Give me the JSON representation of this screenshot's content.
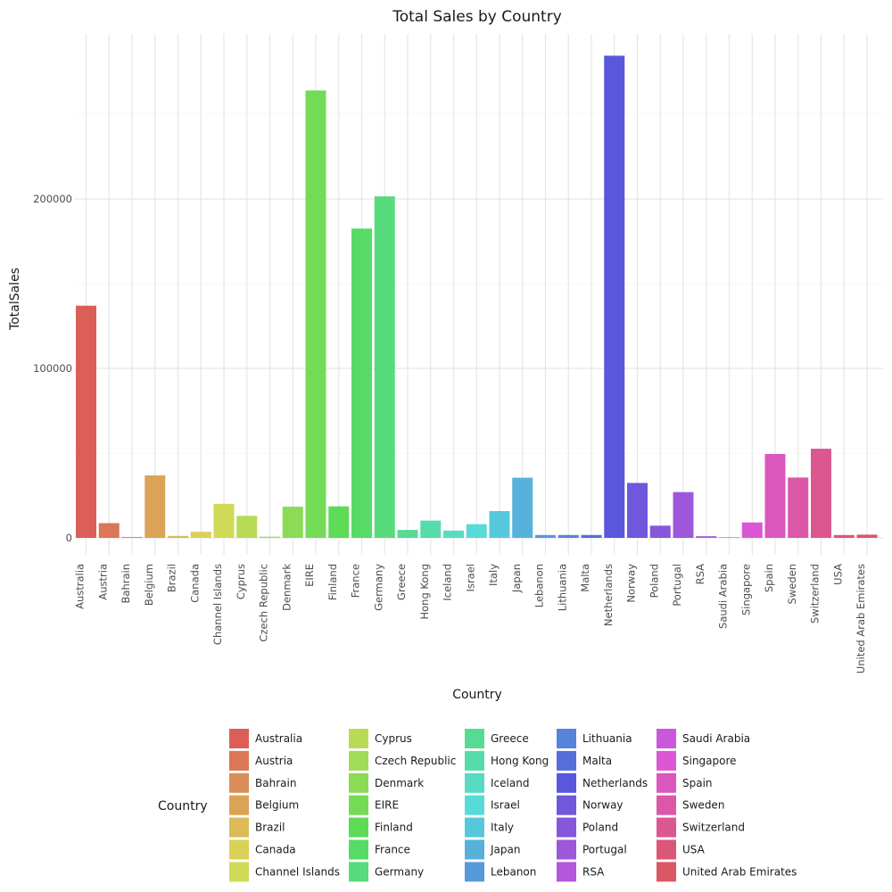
{
  "chart_data": {
    "type": "bar",
    "title": "Total Sales by Country",
    "xlabel": "Country",
    "ylabel": "TotalSales",
    "ylim": [
      0,
      300000
    ],
    "yticks": [
      0,
      100000,
      200000
    ],
    "ytick_labels": [
      "0",
      "100000",
      "200000"
    ],
    "grid": true,
    "legend_title": "Country",
    "legend_position": "bottom",
    "categories": [
      "Australia",
      "Austria",
      "Bahrain",
      "Belgium",
      "Brazil",
      "Canada",
      "Channel Islands",
      "Cyprus",
      "Czech Republic",
      "Denmark",
      "EIRE",
      "Finland",
      "France",
      "Germany",
      "Greece",
      "Hong Kong",
      "Iceland",
      "Israel",
      "Italy",
      "Japan",
      "Lebanon",
      "Lithuania",
      "Malta",
      "Netherlands",
      "Norway",
      "Poland",
      "Portugal",
      "RSA",
      "Saudi Arabia",
      "Singapore",
      "Spain",
      "Sweden",
      "Switzerland",
      "USA",
      "United Arab Emirates"
    ],
    "values": [
      137000,
      8700,
      550,
      36900,
      1150,
      3600,
      20100,
      13000,
      700,
      18400,
      264000,
      18600,
      182500,
      201500,
      4700,
      10200,
      4300,
      8100,
      15800,
      35500,
      1700,
      1700,
      1700,
      284500,
      32400,
      7200,
      27000,
      1000,
      130,
      9100,
      49500,
      35600,
      52600,
      1700,
      1900
    ],
    "colors": [
      "#db5f57",
      "#db7657",
      "#db8d57",
      "#dba357",
      "#dbba57",
      "#dbd157",
      "#cfdb57",
      "#b8db57",
      "#a2db57",
      "#8bdb57",
      "#74db57",
      "#5ddb57",
      "#57db66",
      "#57db7d",
      "#57db94",
      "#57dbaa",
      "#57dbc1",
      "#57dbd8",
      "#57c8db",
      "#57b1db",
      "#579adb",
      "#5784db",
      "#576ddb",
      "#5957db",
      "#7057db",
      "#8657db",
      "#9d57db",
      "#b457db",
      "#cb57db",
      "#db57d5",
      "#db57be",
      "#db57a7",
      "#db5790",
      "#db577a",
      "#db5763"
    ]
  }
}
